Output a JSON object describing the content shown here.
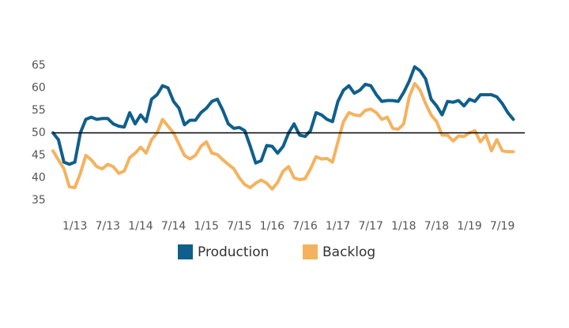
{
  "chart_data": {
    "type": "line",
    "categories": [
      null,
      null,
      null,
      null,
      "1/13",
      null,
      null,
      null,
      null,
      null,
      "7/13",
      null,
      null,
      null,
      null,
      null,
      "1/14",
      null,
      null,
      null,
      null,
      null,
      "7/14",
      null,
      null,
      null,
      null,
      null,
      "1/15",
      null,
      null,
      null,
      null,
      null,
      "7/15",
      null,
      null,
      null,
      null,
      null,
      "1/16",
      null,
      null,
      null,
      null,
      null,
      "7/16",
      null,
      null,
      null,
      null,
      null,
      "1/17",
      null,
      null,
      null,
      null,
      null,
      "7/17",
      null,
      null,
      null,
      null,
      null,
      "1/18",
      null,
      null,
      null,
      null,
      null,
      "7/18",
      null,
      null,
      null,
      null,
      null,
      "1/19",
      null,
      null,
      null,
      null,
      null,
      "7/19",
      null,
      null
    ],
    "series": [
      {
        "name": "Production",
        "color": "#0f5f8c",
        "values": [
          50,
          48.5,
          43.5,
          43,
          43.5,
          50,
          53,
          53.5,
          53,
          53.2,
          53.2,
          52,
          51.5,
          51.3,
          54.5,
          52,
          54,
          52.5,
          57.5,
          58.5,
          60.5,
          60,
          57,
          55.5,
          51.8,
          52.8,
          52.8,
          54.5,
          55.5,
          57,
          57.5,
          55,
          52,
          51,
          51.2,
          50.5,
          47,
          43.3,
          43.8,
          47.2,
          47,
          45.5,
          47,
          50,
          52,
          49.5,
          49.2,
          50.5,
          54.5,
          54,
          53,
          52.5,
          57,
          59.5,
          60.5,
          58.8,
          59.5,
          60.8,
          60.5,
          58.5,
          57,
          57.2,
          57.2,
          57,
          59,
          61.5,
          64.7,
          63.8,
          62,
          57.5,
          56,
          54,
          57,
          56.8,
          57.2,
          56,
          57.5,
          57,
          58.5,
          58.5,
          58.5,
          58,
          56.5,
          54.5,
          53
        ]
      },
      {
        "name": "Backlog",
        "color": "#f5b25e",
        "values": [
          46,
          44,
          42,
          38,
          37.8,
          41,
          45,
          44,
          42.5,
          42,
          43,
          42.5,
          41,
          41.5,
          44.5,
          45.5,
          46.8,
          45.5,
          48.5,
          50,
          53,
          51.5,
          50,
          47.5,
          45,
          44.2,
          45,
          47,
          48,
          45.5,
          45.2,
          44,
          43,
          42,
          40,
          38.5,
          37.8,
          38.8,
          39.5,
          38.8,
          37.5,
          39,
          41.5,
          42.5,
          40,
          39.6,
          39.8,
          42,
          44.7,
          44.2,
          44.3,
          43.5,
          48,
          52.5,
          54.5,
          54,
          53.8,
          55,
          55.3,
          54.5,
          53,
          53.5,
          51,
          50.8,
          52,
          58,
          61,
          59.5,
          56.5,
          54,
          52.5,
          49.5,
          49.5,
          48.2,
          49.3,
          49.2,
          50,
          50.5,
          48,
          49.5,
          46,
          48.5,
          46,
          45.8,
          45.8
        ]
      }
    ],
    "ylim": [
      32,
      68
    ],
    "yticks": [
      35,
      40,
      45,
      50,
      55,
      60,
      65
    ],
    "reference_line": 50,
    "reference_color": "#000000",
    "grid": false,
    "legend": "bottom"
  }
}
